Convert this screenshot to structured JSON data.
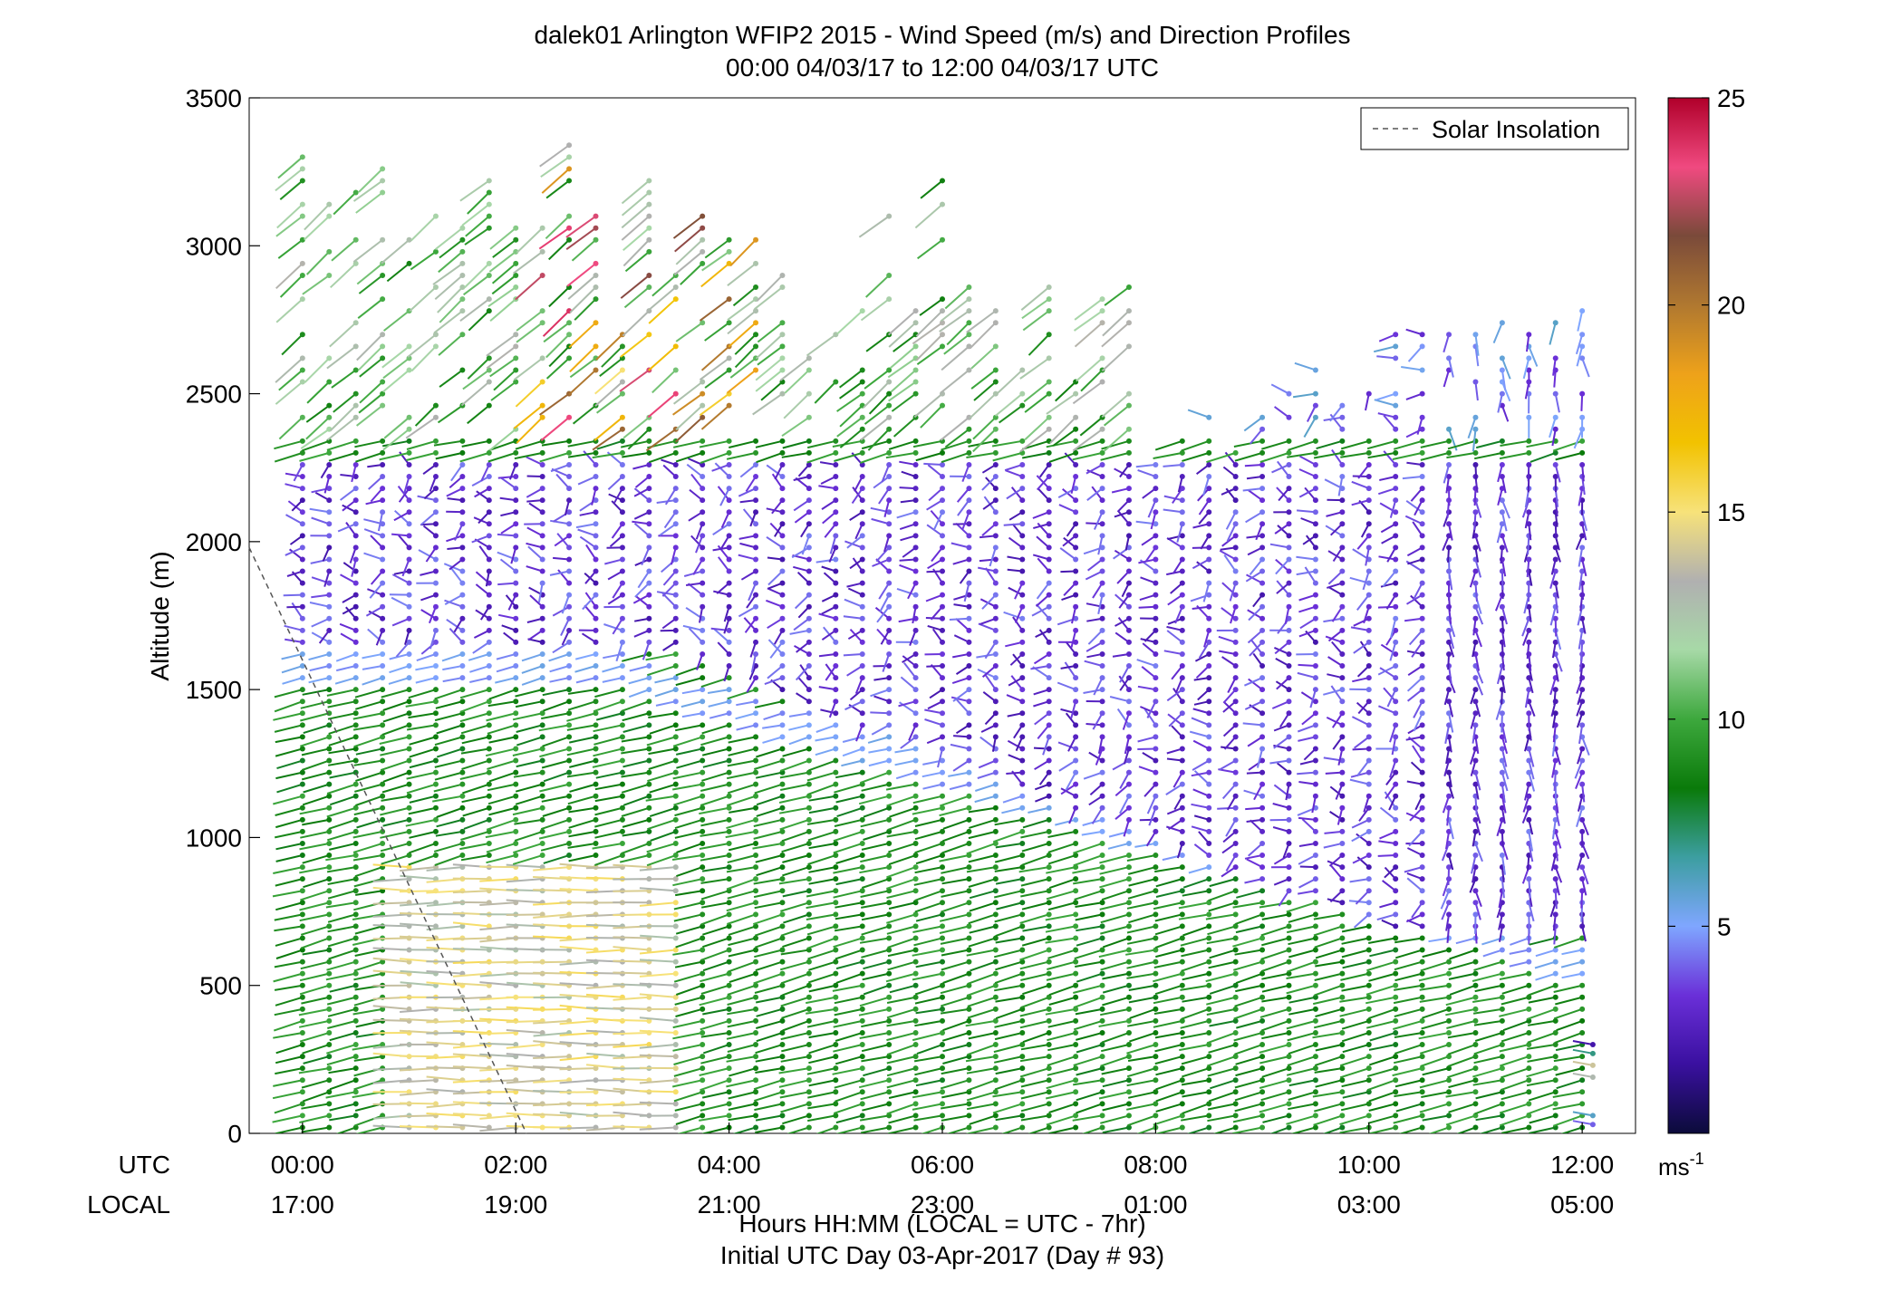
{
  "chart_data": {
    "type": "wind-barb-profile",
    "title": "dalek01 Arlington WFIP2 2015 - Wind Speed (m/s) and Direction Profiles",
    "subtitle": "00:00 04/03/17 to 12:00 04/03/17  UTC",
    "ylabel": "Altitude (m)",
    "xlabel": "Hours HH:MM  (LOCAL = UTC - 7hr)",
    "xlabel2": "Initial UTC Day 03-Apr-2017 (Day # 93)",
    "row_label_utc": "UTC",
    "row_label_local": "LOCAL",
    "xlim_hours": [
      -0.5,
      12.5
    ],
    "ylim": [
      0,
      3500
    ],
    "y_ticks": [
      0,
      500,
      1000,
      1500,
      2000,
      2500,
      3000,
      3500
    ],
    "x_ticks": [
      {
        "hour": 0,
        "utc": "00:00",
        "local": "17:00"
      },
      {
        "hour": 2,
        "utc": "02:00",
        "local": "19:00"
      },
      {
        "hour": 4,
        "utc": "04:00",
        "local": "21:00"
      },
      {
        "hour": 6,
        "utc": "06:00",
        "local": "23:00"
      },
      {
        "hour": 8,
        "utc": "08:00",
        "local": "01:00"
      },
      {
        "hour": 10,
        "utc": "10:00",
        "local": "03:00"
      },
      {
        "hour": 12,
        "utc": "12:00",
        "local": "05:00"
      }
    ],
    "legend": {
      "label": "Solar Insolation",
      "position": "top-right",
      "style": "dashed"
    },
    "solar_insolation_line": [
      [
        -0.5,
        1980
      ],
      [
        2.1,
        0
      ]
    ],
    "colorbar": {
      "range": [
        0,
        25
      ],
      "ticks": [
        5,
        10,
        15,
        20,
        25
      ],
      "unit": "ms",
      "unit_exp": "-1",
      "colors": [
        "#0b0b3a",
        "#3a10a0",
        "#6a2fd8",
        "#7fa6ff",
        "#3c9ea0",
        "#0a7a0a",
        "#3da83d",
        "#a7d9a7",
        "#b0b0b0",
        "#f7e27a",
        "#f2c200",
        "#eea21a",
        "#b07830",
        "#7a4a3a",
        "#f04a80",
        "#b0002a"
      ]
    },
    "profile_interval_minutes": 15,
    "barb_height_spacing_m": 40,
    "wind_regions": [
      {
        "period_hours": [
          0,
          12
        ],
        "altitude_m": [
          0,
          1500
        ],
        "speed_ms": 9,
        "direction": "west-northwest"
      },
      {
        "period_hours": [
          1,
          3.5
        ],
        "altitude_m": [
          0,
          900
        ],
        "speed_ms": 14,
        "direction": "west"
      },
      {
        "period_hours": [
          4,
          12
        ],
        "altitude_m": [
          1200,
          2300
        ],
        "speed_ms": 2,
        "direction": "variable"
      },
      {
        "period_hours": [
          0,
          7
        ],
        "altitude_m": [
          2400,
          3500
        ],
        "speed_ms": 11,
        "direction": "northwest"
      },
      {
        "period_hours": [
          12,
          12.1
        ],
        "altitude_m": [
          0,
          300
        ],
        "speed_ms": 6,
        "direction": "west"
      }
    ]
  }
}
